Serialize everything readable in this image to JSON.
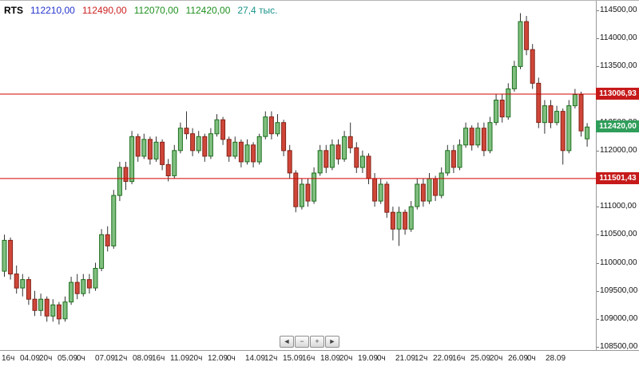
{
  "header": {
    "symbol": "RTS",
    "values": [
      {
        "name": "open",
        "text": "112210,00",
        "color": "#2433cc"
      },
      {
        "name": "high",
        "text": "112490,00",
        "color": "#cc2222"
      },
      {
        "name": "low",
        "text": "112070,00",
        "color": "#1e8f1e"
      },
      {
        "name": "close",
        "text": "112420,00",
        "color": "#1e8f1e"
      },
      {
        "name": "volume",
        "text": "27,4 тыс.",
        "color": "#18948a"
      }
    ]
  },
  "nav": {
    "buttons": [
      {
        "name": "scroll-left-button",
        "label": "◄"
      },
      {
        "name": "zoom-out-button",
        "label": "−"
      },
      {
        "name": "zoom-in-button",
        "label": "+"
      },
      {
        "name": "scroll-right-button",
        "label": "►"
      }
    ]
  },
  "chart_data": {
    "type": "candlestick",
    "symbol": "RTS",
    "ylim": [
      108500,
      114500
    ],
    "y_ticks": [
      {
        "value": 114500,
        "label": "114500,00"
      },
      {
        "value": 114000,
        "label": "114000,00"
      },
      {
        "value": 113500,
        "label": "113500,00"
      },
      {
        "value": 113000,
        "label": "113000,00"
      },
      {
        "value": 112500,
        "label": "112500,00"
      },
      {
        "value": 112000,
        "label": "112000,00"
      },
      {
        "value": 111500,
        "label": "111500,00"
      },
      {
        "value": 111000,
        "label": "111000,00"
      },
      {
        "value": 110500,
        "label": "110500,00"
      },
      {
        "value": 110000,
        "label": "110000,00"
      },
      {
        "value": 109500,
        "label": "109500,00"
      },
      {
        "value": 109000,
        "label": "109000,00"
      },
      {
        "value": 108500,
        "label": "108500,00"
      }
    ],
    "x_ticks": [
      {
        "text": "16ч",
        "x": 2
      },
      {
        "text": "04.09",
        "x": 25
      },
      {
        "text": "20ч",
        "x": 49
      },
      {
        "text": "05.09",
        "x": 72
      },
      {
        "text": "0ч",
        "x": 96
      },
      {
        "text": "07.09",
        "x": 119
      },
      {
        "text": "12ч",
        "x": 143
      },
      {
        "text": "08.09",
        "x": 166
      },
      {
        "text": "16ч",
        "x": 190
      },
      {
        "text": "11.09",
        "x": 213
      },
      {
        "text": "20ч",
        "x": 237
      },
      {
        "text": "12.09",
        "x": 260
      },
      {
        "text": "0ч",
        "x": 284
      },
      {
        "text": "14.09",
        "x": 307
      },
      {
        "text": "12ч",
        "x": 331
      },
      {
        "text": "15.09",
        "x": 354
      },
      {
        "text": "16ч",
        "x": 378
      },
      {
        "text": "18.09",
        "x": 401
      },
      {
        "text": "20ч",
        "x": 425
      },
      {
        "text": "19.09",
        "x": 448
      },
      {
        "text": "0ч",
        "x": 472
      },
      {
        "text": "21.09",
        "x": 495
      },
      {
        "text": "12ч",
        "x": 519
      },
      {
        "text": "22.09",
        "x": 542
      },
      {
        "text": "16ч",
        "x": 566
      },
      {
        "text": "25.09",
        "x": 589
      },
      {
        "text": "20ч",
        "x": 613
      },
      {
        "text": "26.09",
        "x": 636
      },
      {
        "text": "0ч",
        "x": 660
      },
      {
        "text": "28.09",
        "x": 683
      }
    ],
    "levels": [
      {
        "value": 113006.93,
        "label": "113006,93"
      },
      {
        "value": 111501.43,
        "label": "111501,43"
      }
    ],
    "last_price": {
      "value": 112420,
      "label": "112420,00"
    },
    "colors": {
      "up_fill": "#7fbf7f",
      "up_border": "#1d6f1d",
      "down_fill": "#cf4638",
      "down_border": "#84231a",
      "wick": "#333333",
      "level_line": "#d40000",
      "level_badge_bg": "#c61a1a",
      "last_badge_bg": "#2f9e5a"
    },
    "candles": [
      [
        109850,
        110500,
        109750,
        110400
      ],
      [
        110400,
        110450,
        109700,
        109800
      ],
      [
        109800,
        109950,
        109450,
        109550
      ],
      [
        109550,
        109800,
        109400,
        109700
      ],
      [
        109700,
        109750,
        109250,
        109350
      ],
      [
        109350,
        109500,
        109050,
        109150
      ],
      [
        109150,
        109450,
        109050,
        109350
      ],
      [
        109350,
        109400,
        108950,
        109050
      ],
      [
        109050,
        109350,
        108950,
        109250
      ],
      [
        109250,
        109300,
        108900,
        109000
      ],
      [
        109000,
        109400,
        108950,
        109300
      ],
      [
        109300,
        109750,
        109250,
        109650
      ],
      [
        109650,
        109800,
        109350,
        109450
      ],
      [
        109450,
        109800,
        109400,
        109700
      ],
      [
        109700,
        109800,
        109450,
        109550
      ],
      [
        109550,
        110000,
        109500,
        109900
      ],
      [
        109900,
        110600,
        109850,
        110500
      ],
      [
        110500,
        110650,
        110200,
        110300
      ],
      [
        110300,
        111300,
        110250,
        111200
      ],
      [
        111200,
        111800,
        111100,
        111700
      ],
      [
        111700,
        111800,
        111300,
        111450
      ],
      [
        111450,
        112350,
        111400,
        112250
      ],
      [
        112250,
        112300,
        111800,
        111900
      ],
      [
        111900,
        112300,
        111850,
        112200
      ],
      [
        112200,
        112250,
        111750,
        111850
      ],
      [
        111850,
        112250,
        111800,
        112150
      ],
      [
        112150,
        112200,
        111650,
        111750
      ],
      [
        111750,
        111850,
        111450,
        111550
      ],
      [
        111550,
        112100,
        111500,
        112000
      ],
      [
        112000,
        112500,
        111950,
        112400
      ],
      [
        112400,
        112700,
        112200,
        112300
      ],
      [
        112300,
        112400,
        111900,
        112000
      ],
      [
        112000,
        112350,
        111950,
        112250
      ],
      [
        112250,
        112300,
        111800,
        111900
      ],
      [
        111900,
        112400,
        111850,
        112300
      ],
      [
        112300,
        112650,
        112250,
        112550
      ],
      [
        112550,
        112600,
        112100,
        112200
      ],
      [
        112200,
        112250,
        111800,
        111900
      ],
      [
        111900,
        112250,
        111850,
        112150
      ],
      [
        112150,
        112200,
        111700,
        111800
      ],
      [
        111800,
        112200,
        111750,
        112100
      ],
      [
        112100,
        112150,
        111700,
        111800
      ],
      [
        111800,
        112300,
        111750,
        112250
      ],
      [
        112250,
        112700,
        112200,
        112600
      ],
      [
        112600,
        112700,
        112200,
        112300
      ],
      [
        112300,
        112650,
        112250,
        112500
      ],
      [
        112500,
        112550,
        111900,
        112000
      ],
      [
        112000,
        112100,
        111500,
        111600
      ],
      [
        111600,
        111650,
        110900,
        111000
      ],
      [
        111000,
        111500,
        110950,
        111400
      ],
      [
        111400,
        111500,
        111000,
        111100
      ],
      [
        111100,
        111700,
        111050,
        111600
      ],
      [
        111600,
        112100,
        111550,
        112000
      ],
      [
        112000,
        112100,
        111600,
        111700
      ],
      [
        111700,
        112200,
        111650,
        112100
      ],
      [
        112100,
        112200,
        111750,
        111850
      ],
      [
        111850,
        112350,
        111800,
        112250
      ],
      [
        112250,
        112500,
        111950,
        112050
      ],
      [
        112050,
        112150,
        111600,
        111700
      ],
      [
        111700,
        112000,
        111600,
        111900
      ],
      [
        111900,
        111950,
        111400,
        111500
      ],
      [
        111500,
        111600,
        111000,
        111100
      ],
      [
        111100,
        111500,
        111050,
        111400
      ],
      [
        111400,
        111450,
        110800,
        110900
      ],
      [
        110900,
        111000,
        110400,
        110600
      ],
      [
        110600,
        111000,
        110300,
        110900
      ],
      [
        110900,
        110950,
        110500,
        110600
      ],
      [
        110600,
        111100,
        110550,
        111000
      ],
      [
        111000,
        111500,
        110950,
        111400
      ],
      [
        111400,
        111500,
        111000,
        111100
      ],
      [
        111100,
        111600,
        111050,
        111500
      ],
      [
        111500,
        111550,
        111100,
        111200
      ],
      [
        111200,
        111700,
        111150,
        111600
      ],
      [
        111600,
        112100,
        111550,
        112000
      ],
      [
        112000,
        112100,
        111600,
        111700
      ],
      [
        111700,
        112200,
        111650,
        112100
      ],
      [
        112100,
        112500,
        112050,
        112400
      ],
      [
        112400,
        112450,
        112000,
        112100
      ],
      [
        112100,
        112500,
        112050,
        112400
      ],
      [
        112400,
        112500,
        111900,
        112000
      ],
      [
        112000,
        112600,
        111950,
        112500
      ],
      [
        112500,
        113000,
        112450,
        112900
      ],
      [
        112900,
        113000,
        112500,
        112600
      ],
      [
        112600,
        113200,
        112550,
        113100
      ],
      [
        113100,
        113600,
        113050,
        113500
      ],
      [
        113500,
        114450,
        113450,
        114300
      ],
      [
        114300,
        114400,
        113700,
        113800
      ],
      [
        113800,
        113900,
        113100,
        113200
      ],
      [
        113200,
        113300,
        112400,
        112500
      ],
      [
        112500,
        112900,
        112300,
        112800
      ],
      [
        112800,
        112900,
        112400,
        112500
      ],
      [
        112500,
        112800,
        112450,
        112700
      ],
      [
        112700,
        112750,
        111750,
        112000
      ],
      [
        112000,
        112900,
        111950,
        112800
      ],
      [
        112800,
        113100,
        112750,
        113000
      ],
      [
        113000,
        113050,
        112250,
        112350
      ],
      [
        112210,
        112490,
        112070,
        112420
      ]
    ]
  }
}
